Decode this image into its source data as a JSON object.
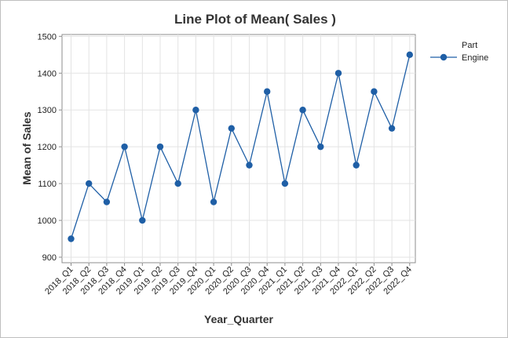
{
  "chart_data": {
    "type": "line",
    "title": "Line Plot of Mean( Sales )",
    "xlabel": "Year_Quarter",
    "ylabel": "Mean of Sales",
    "ylim": [
      885,
      1505
    ],
    "yticks": [
      900,
      1000,
      1100,
      1200,
      1300,
      1400,
      1500
    ],
    "grid": true,
    "legend_position": "right",
    "legend_title": "Part",
    "categories": [
      "2018_Q1",
      "2018_Q2",
      "2018_Q3",
      "2018_Q4",
      "2019_Q1",
      "2019_Q2",
      "2019_Q3",
      "2019_Q4",
      "2020_Q1",
      "2020_Q2",
      "2020_Q3",
      "2020_Q4",
      "2021_Q1",
      "2021_Q2",
      "2021_Q3",
      "2021_Q4",
      "2022_Q1",
      "2022_Q2",
      "2022_Q3",
      "2022_Q4"
    ],
    "series": [
      {
        "name": "Engine",
        "color": "#1f5fa6",
        "values": [
          950,
          1100,
          1050,
          1200,
          1000,
          1200,
          1100,
          1300,
          1050,
          1250,
          1150,
          1350,
          1100,
          1300,
          1200,
          1400,
          1150,
          1350,
          1250,
          1450
        ]
      }
    ]
  }
}
